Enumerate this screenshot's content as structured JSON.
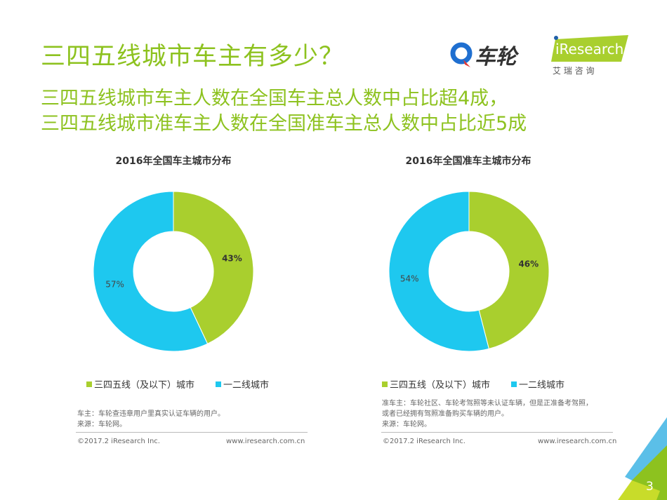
{
  "header": {
    "title": "三四五线城市车主有多少？",
    "subtitle_lines": [
      "三四五线城市车主人数在全国车主总人数中占比超4成，",
      "三四五线城市准车主人数在全国准车主总人数中占比近5成"
    ],
    "logos": {
      "chelun": "车轮",
      "iresearch": "iResearch",
      "iresearch_cn": "艾 瑞 咨 询"
    }
  },
  "colors": {
    "green": "#a9cf2e",
    "blue": "#1ec8ef",
    "title_green": "#8dc21f"
  },
  "chart_data": [
    {
      "type": "pie",
      "donut": true,
      "title": "2016年全国车主城市分布",
      "categories": [
        "三四五线（及以下）城市",
        "一二线城市"
      ],
      "values": [
        43,
        57
      ],
      "labels": [
        "43%",
        "57%"
      ],
      "legend": "bottom"
    },
    {
      "type": "pie",
      "donut": true,
      "title": "2016年全国准车主城市分布",
      "categories": [
        "三四五线（及以下）城市",
        "一二线城市"
      ],
      "values": [
        46,
        54
      ],
      "labels": [
        "46%",
        "54%"
      ],
      "legend": "bottom"
    }
  ],
  "notes": [
    [
      "车主：车轮查违章用户里真实认证车辆的用户。",
      "来源：车轮网。"
    ],
    [
      "准车主：车轮社区、车轮考驾照等未认证车辆，但是正准备考驾照，",
      "或者已经拥有驾照准备购买车辆的用户。",
      "来源：车轮网。"
    ]
  ],
  "footer": {
    "copyright": "©2017.2 iResearch Inc.",
    "url": "www.iresearch.com.cn"
  },
  "page_number": "3"
}
